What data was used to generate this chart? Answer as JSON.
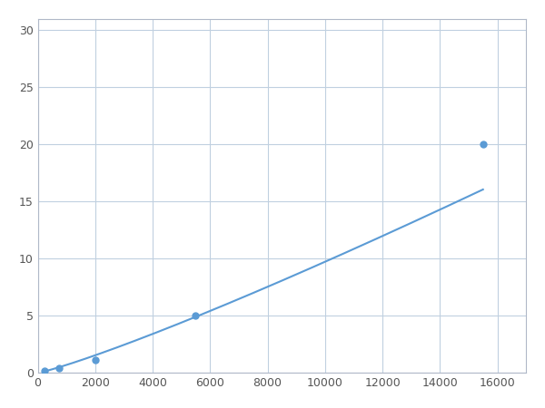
{
  "x": [
    250,
    750,
    2000,
    5500,
    15500
  ],
  "y": [
    0.2,
    0.4,
    1.1,
    5.0,
    20.0
  ],
  "line_color": "#5b9bd5",
  "marker_color": "#5b9bd5",
  "marker_style": "o",
  "marker_size": 5,
  "line_width": 1.5,
  "xlim": [
    0,
    17000
  ],
  "ylim": [
    0,
    31
  ],
  "xticks": [
    0,
    2000,
    4000,
    6000,
    8000,
    10000,
    12000,
    14000,
    16000
  ],
  "yticks": [
    0,
    5,
    10,
    15,
    20,
    25,
    30
  ],
  "grid_color": "#c0d0e0",
  "grid_linewidth": 0.8,
  "background_color": "#ffffff",
  "spine_color": "#b0b8c8",
  "figsize": [
    6.0,
    4.5
  ],
  "dpi": 100
}
